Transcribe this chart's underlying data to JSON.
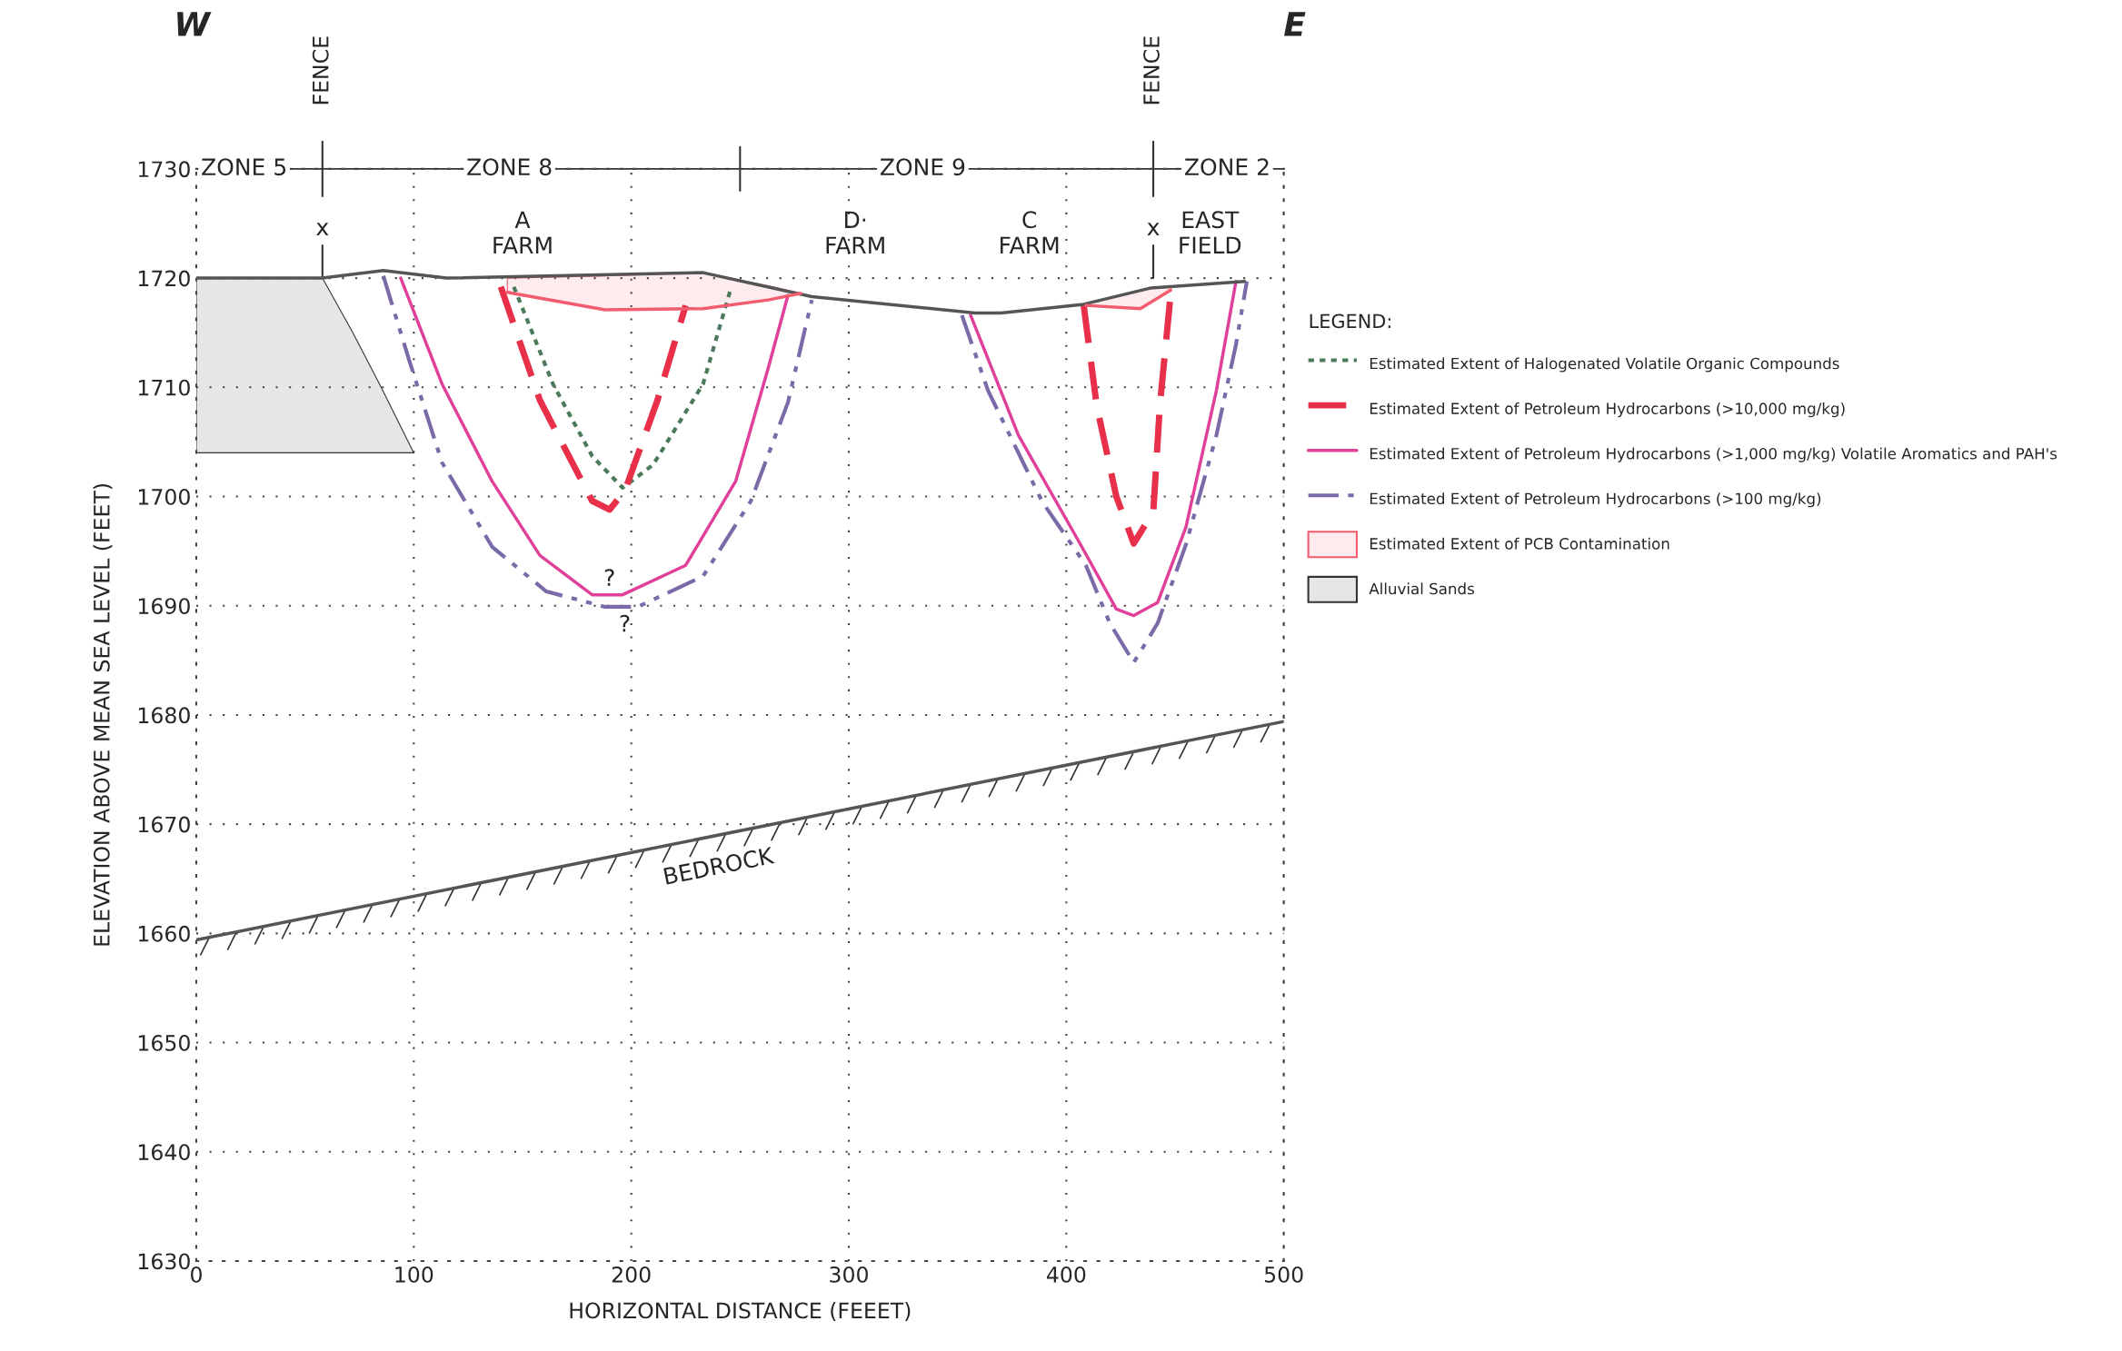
{
  "chart_data": {
    "type": "line",
    "xlabel": "HORIZONTAL DISTANCE (FEEET)",
    "ylabel": "ELEVATION ABOVE MEAN SEA LEVEL (FEET)",
    "legend_title": "LEGEND:",
    "xlim": [
      0,
      500
    ],
    "ylim": [
      1630,
      1730
    ],
    "xticks": [
      0,
      100,
      200,
      300,
      400,
      500
    ],
    "yticks": [
      1630,
      1640,
      1650,
      1660,
      1670,
      1680,
      1690,
      1700,
      1710,
      1720,
      1730
    ],
    "grid": true,
    "legend": "right",
    "series": [
      {
        "type": "line",
        "color": "#555555",
        "line_style": "solid",
        "x": [
          0,
          58,
          86,
          115,
          233,
          283,
          358,
          370,
          408,
          439,
          482
        ],
        "values": [
          1720,
          1720,
          1720.7,
          1720,
          1720.5,
          1718.3,
          1716.8,
          1716.8,
          1717.6,
          1719.1,
          1719.7
        ]
      },
      {
        "type": "line",
        "color": "#555555",
        "line_style": "solid",
        "x": [
          0,
          500
        ],
        "values": [
          1659.4,
          1679.4
        ]
      },
      {
        "type": "line",
        "name": "Estimated Extent of Halogenated Volatile Organic Compounds",
        "color": "#4a7a5a",
        "line_style": "dotted",
        "x": [
          146,
          164,
          182,
          196,
          210,
          233,
          246
        ],
        "values": [
          1719.2,
          1710.3,
          1703.7,
          1700.8,
          1702.9,
          1710.3,
          1719.2
        ]
      },
      {
        "type": "line",
        "name": "Estimated Extent of Petroleum Hydrocarbons (>10,000 mg/kg)",
        "color": "#e8304a",
        "line_style": "dashed",
        "x": [
          140,
          158,
          182,
          190,
          197,
          212,
          225,
          null,
          408,
          414,
          423,
          431,
          440,
          443,
          448
        ],
        "values": [
          1719.2,
          1708.8,
          1699.6,
          1698.8,
          1700.5,
          1708.8,
          1717.5,
          null,
          1717.5,
          1708.3,
          1700,
          1695.7,
          1698.6,
          1708.3,
          1718.6
        ]
      },
      {
        "type": "line",
        "name": "Estimated Extent of Petroleum Hydrocarbons (>1,000 mg/kg) Volatile Aromatics and PAH's",
        "color": "#e0409a",
        "line_style": "solid",
        "x": [
          94,
          113,
          136,
          158,
          182,
          196,
          225,
          248,
          263,
          272,
          null,
          356,
          378,
          406,
          423,
          431,
          442,
          455,
          469,
          478
        ],
        "values": [
          1720,
          1710.3,
          1701.4,
          1694.6,
          1691,
          1691,
          1693.7,
          1701.4,
          1711.8,
          1718.4,
          null,
          1716.6,
          1705.6,
          1695.8,
          1689.7,
          1689.1,
          1690.3,
          1697.2,
          1709.7,
          1719.7
        ]
      },
      {
        "type": "line",
        "name": "Estimated Extent of Petroleum Hydrocarbons (>100 mg/kg)",
        "color": "#7a6aa8",
        "line_style": "dashdot",
        "x": [
          86,
          98,
          113,
          136,
          161,
          188,
          203,
          233,
          255,
          272,
          283,
          null,
          352,
          364,
          389,
          409,
          420,
          431,
          442,
          455,
          469,
          478,
          483
        ],
        "values": [
          1720.2,
          1712.4,
          1703.1,
          1695.4,
          1691.3,
          1689.9,
          1689.9,
          1692.7,
          1699.6,
          1708.6,
          1718,
          null,
          1716.6,
          1709.7,
          1699.5,
          1693.7,
          1688.4,
          1684.8,
          1688.4,
          1695.6,
          1705.6,
          1713.9,
          1719.7
        ]
      },
      {
        "type": "area",
        "name": "Estimated Extent of PCB Contamination",
        "color": "#f25c6e",
        "x": [
          143,
          188,
          233,
          263,
          278,
          null,
          409,
          434,
          448
        ],
        "values": [
          1720,
          1720.2,
          1720.5,
          1719.3,
          1718.6,
          null,
          1717.6,
          1718.9,
          1719.3
        ]
      },
      {
        "type": "line",
        "color": "#f25c6e",
        "line_style": "solid",
        "x": [
          143,
          188,
          233,
          263,
          278,
          null,
          409,
          434,
          448
        ],
        "values": [
          1718.7,
          1717.1,
          1717.2,
          1718,
          1718.6,
          null,
          1717.5,
          1717.2,
          1718.9
        ]
      },
      {
        "type": "area",
        "name": "Alluvial Sands",
        "color": "#333333",
        "x": [
          0,
          58,
          72,
          85,
          100
        ],
        "values": [
          1720,
          1720,
          1715,
          1710,
          1704
        ]
      }
    ],
    "annotations": [
      "W",
      "E",
      "FENCE",
      "FENCE",
      "ZONE 5",
      "ZONE 8",
      "ZONE 9",
      "ZONE 2",
      "x",
      "x",
      "A\nFARM",
      "D·\nFARM",
      "C\nFARM",
      "EAST\nFIELD",
      "?",
      "?",
      "BEDROCK"
    ]
  }
}
